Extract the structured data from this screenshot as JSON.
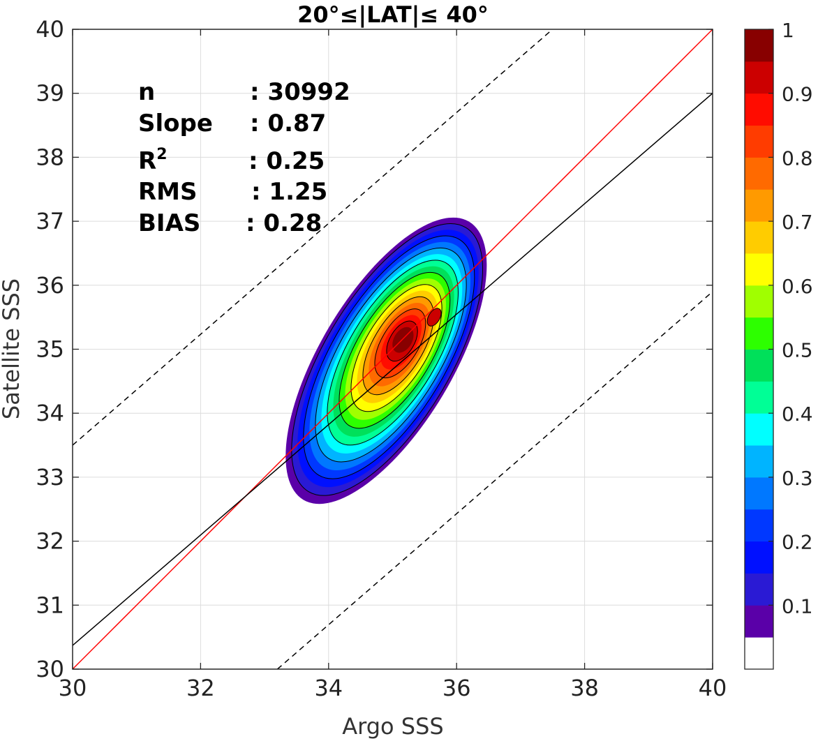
{
  "chart_data": {
    "type": "heatmap",
    "title": "20°≤|LAT|≤ 40°",
    "xlabel": "Argo SSS",
    "ylabel": "Satellite SSS",
    "xlim": [
      30,
      40
    ],
    "ylim": [
      30,
      40
    ],
    "xticks": [
      "30",
      "32",
      "34",
      "36",
      "38",
      "40"
    ],
    "yticks": [
      "30",
      "31",
      "32",
      "33",
      "34",
      "35",
      "36",
      "37",
      "38",
      "39",
      "40"
    ],
    "grid": true,
    "density": {
      "center": [
        34.9,
        34.82
      ],
      "principal_axis_slope": 1.68,
      "secondary_peak": [
        35.65,
        35.5
      ],
      "max": 1.0,
      "outer_extent_x": [
        33.3,
        36.3
      ],
      "outer_extent_y": [
        32.65,
        36.6
      ]
    },
    "lines": [
      {
        "name": "1:1",
        "color": "#ff0000",
        "style": "solid",
        "points": [
          [
            30,
            30
          ],
          [
            40,
            40
          ]
        ]
      },
      {
        "name": "fit",
        "color": "#000000",
        "style": "solid",
        "points": [
          [
            30,
            30.37
          ],
          [
            40,
            39.0
          ]
        ]
      },
      {
        "name": "upper",
        "color": "#000000",
        "style": "dashed",
        "points": [
          [
            30,
            33.5
          ],
          [
            37.5,
            40
          ]
        ]
      },
      {
        "name": "lower",
        "color": "#000000",
        "style": "dashed",
        "points": [
          [
            33.2,
            30
          ],
          [
            40,
            35.9
          ]
        ]
      }
    ],
    "stats": [
      {
        "label": "n",
        "value": ": 30992"
      },
      {
        "label": "Slope",
        "value": ": 0.87"
      },
      {
        "label": "R",
        "sup": "2",
        "value": ": 0.25"
      },
      {
        "label": "RMS",
        "value": ": 1.25"
      },
      {
        "label": "BIAS",
        "value": ": 0.28"
      }
    ],
    "colorbar": {
      "ticks": [
        "1",
        "0.9",
        "0.8",
        "0.7",
        "0.6",
        "0.5",
        "0.4",
        "0.3",
        "0.2",
        "0.1"
      ],
      "tick_values": [
        1,
        0.9,
        0.8,
        0.7,
        0.6,
        0.5,
        0.4,
        0.3,
        0.2,
        0.1
      ],
      "colors": [
        "#ffffff",
        "#5a00a8",
        "#2a1ad4",
        "#0010ff",
        "#0038ff",
        "#0078ff",
        "#00b4ff",
        "#00ffff",
        "#00ff96",
        "#00e05a",
        "#2dff00",
        "#a0ff00",
        "#ffff00",
        "#ffcc00",
        "#ff9a00",
        "#ff6a00",
        "#ff3c00",
        "#ff0c00",
        "#cc0000",
        "#880000"
      ]
    }
  }
}
